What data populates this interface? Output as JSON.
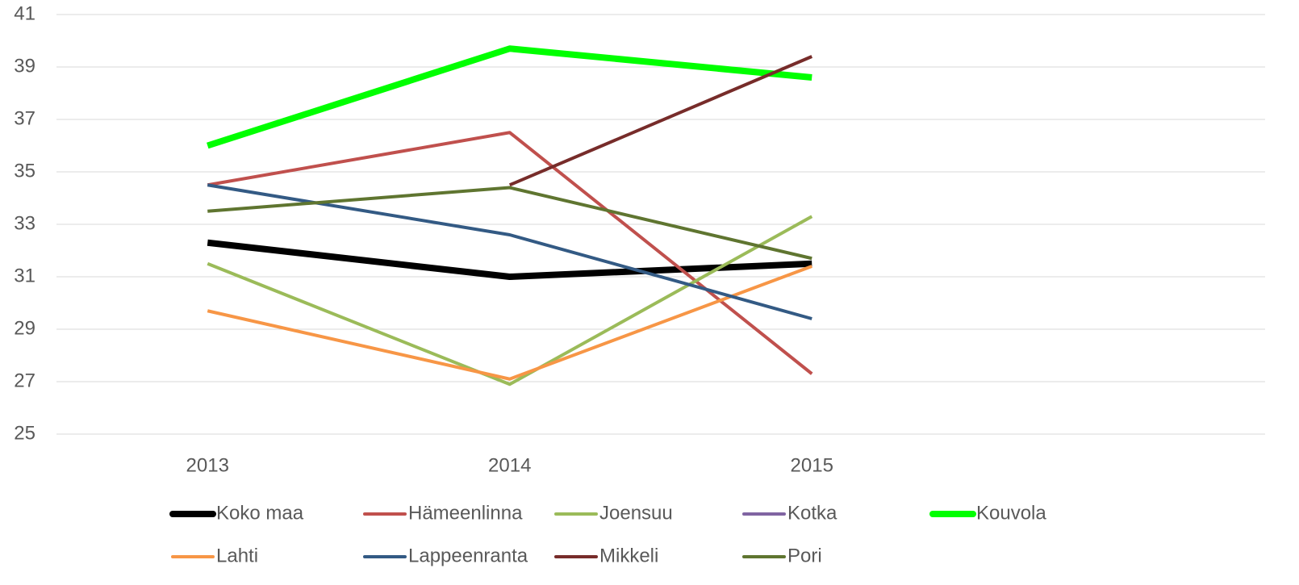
{
  "chart_data": {
    "type": "line",
    "categories": [
      "2013",
      "2014",
      "2015",
      null
    ],
    "series": [
      {
        "name": "Koko maa",
        "color": "#000000",
        "values": [
          32.3,
          31.0,
          31.5,
          null
        ]
      },
      {
        "name": "Hämeenlinna",
        "color": "#c0504d",
        "values": [
          34.5,
          36.5,
          27.3,
          null
        ]
      },
      {
        "name": "Joensuu",
        "color": "#9bbb59",
        "values": [
          31.5,
          26.9,
          33.3,
          null
        ]
      },
      {
        "name": "Kotka",
        "color": "#8064a2",
        "values": [
          null,
          null,
          null,
          null
        ]
      },
      {
        "name": "Kouvola",
        "color": "#00ff00",
        "values": [
          36.0,
          39.7,
          38.6,
          null
        ]
      },
      {
        "name": "Lahti",
        "color": "#f79646",
        "values": [
          29.7,
          27.1,
          31.4,
          null
        ]
      },
      {
        "name": "Lappeenranta",
        "color": "#335a84",
        "values": [
          34.5,
          32.6,
          29.4,
          null
        ]
      },
      {
        "name": "Mikkeli",
        "color": "#772c2a",
        "values": [
          null,
          34.5,
          39.4,
          null
        ]
      },
      {
        "name": "Pori",
        "color": "#5f7530",
        "values": [
          33.5,
          34.4,
          31.7,
          null
        ]
      }
    ],
    "ylim": [
      25,
      41
    ],
    "yticks": [
      25,
      27,
      29,
      31,
      33,
      35,
      37,
      39,
      41
    ],
    "grid": true,
    "legend": "bottom"
  }
}
